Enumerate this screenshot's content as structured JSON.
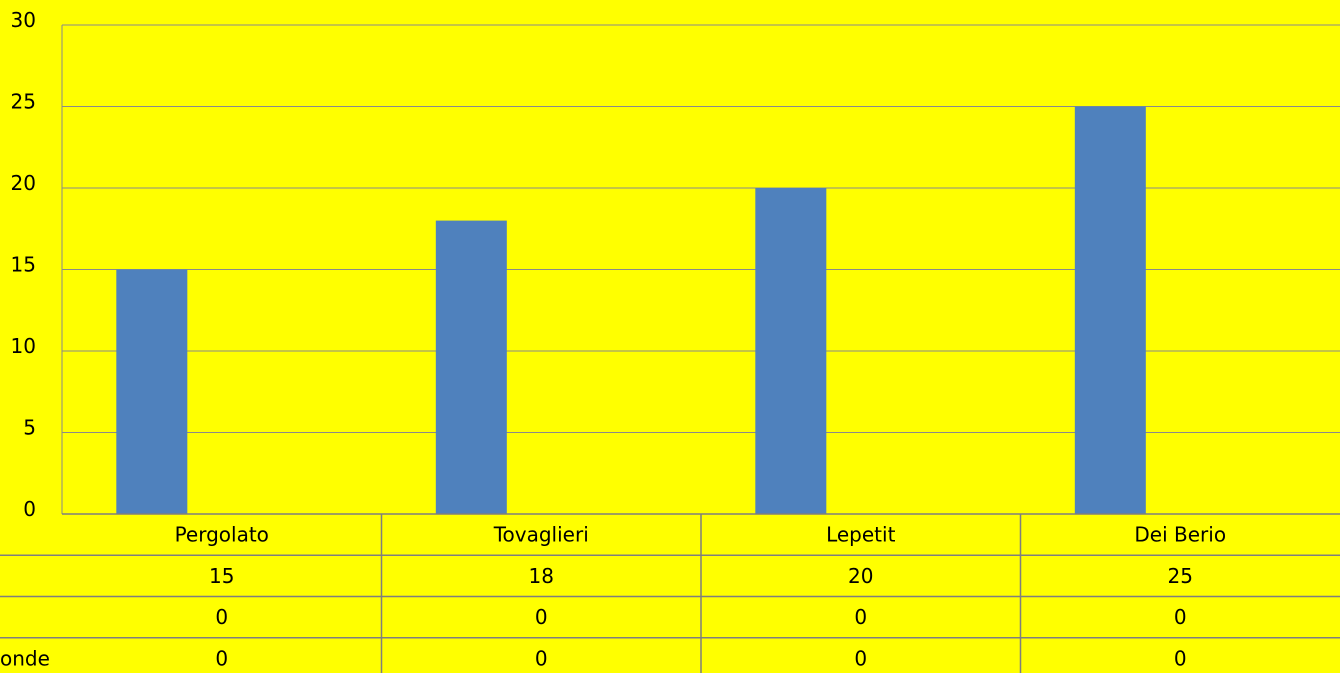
{
  "colors": {
    "background": "#ffff00",
    "bar": "#4f81bd",
    "grid": "#8a8a8a",
    "table_line": "#7f7f7f"
  },
  "chart_data": {
    "type": "bar",
    "categories": [
      "Pergolato",
      "Tovaglieri",
      "Lepetit",
      "Dei Berio"
    ],
    "series": [
      {
        "values": [
          15,
          18,
          20,
          25
        ]
      }
    ],
    "ylim": [
      0,
      30
    ],
    "yticks": [
      0,
      5,
      10,
      15,
      20,
      25,
      30
    ],
    "grid": true,
    "data_table": {
      "rows": [
        {
          "label": "",
          "values": [
            "15",
            "18",
            "20",
            "25"
          ]
        },
        {
          "label": "",
          "values": [
            "0",
            "0",
            "0",
            "0"
          ]
        },
        {
          "label": "onde",
          "values": [
            "0",
            "0",
            "0",
            "0"
          ]
        }
      ]
    }
  }
}
